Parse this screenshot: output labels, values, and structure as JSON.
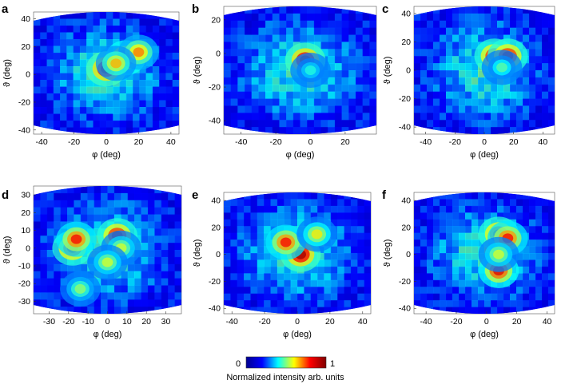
{
  "figure": {
    "colorbar": {
      "min_label": "0",
      "max_label": "1",
      "label": "Normalized intensity arb. units",
      "colormap": [
        "#00008f",
        "#0000ff",
        "#00ffff",
        "#ffff00",
        "#ff0000",
        "#800000"
      ]
    }
  },
  "chart_data": [
    {
      "panel": "a",
      "type": "heatmap",
      "xlabel": "φ (deg)",
      "ylabel": "ϑ (deg)",
      "xlim": [
        -45,
        45
      ],
      "ylim": [
        -43,
        45
      ],
      "xticks": [
        "-40",
        "-20",
        "0",
        "20",
        "40"
      ],
      "yticks": [
        "40",
        "20",
        "0",
        "-20",
        "-40"
      ],
      "hotspots": [
        {
          "x": 0,
          "y": 4,
          "intensity": 1.0
        },
        {
          "x": 12,
          "y": 12,
          "intensity": 0.9
        },
        {
          "x": 20,
          "y": 16,
          "intensity": 0.75
        },
        {
          "x": 6,
          "y": 8,
          "intensity": 0.7
        }
      ]
    },
    {
      "panel": "b",
      "type": "heatmap",
      "xlabel": "φ (deg)",
      "ylabel": "ϑ (deg)",
      "xlim": [
        -50,
        38
      ],
      "ylim": [
        -48,
        28
      ],
      "xticks": [
        "-40",
        "-20",
        "0",
        "20"
      ],
      "yticks": [
        "20",
        "0",
        "-20",
        "-40"
      ],
      "hotspots": [
        {
          "x": -3,
          "y": -4,
          "intensity": 1.0
        },
        {
          "x": 0,
          "y": -10,
          "intensity": 0.45
        }
      ]
    },
    {
      "panel": "c",
      "type": "heatmap",
      "xlabel": "φ (deg)",
      "ylabel": "ϑ (deg)",
      "xlim": [
        -48,
        48
      ],
      "ylim": [
        -45,
        45
      ],
      "xticks": [
        "-40",
        "-20",
        "0",
        "20",
        "40"
      ],
      "yticks": [
        "40",
        "20",
        "0",
        "-20",
        "-40"
      ],
      "hotspots": [
        {
          "x": 7,
          "y": 10,
          "intensity": 0.95
        },
        {
          "x": 16,
          "y": 10,
          "intensity": 0.95
        },
        {
          "x": 12,
          "y": 2,
          "intensity": 0.5
        }
      ]
    },
    {
      "panel": "d",
      "type": "heatmap",
      "xlabel": "φ (deg)",
      "ylabel": "ϑ (deg)",
      "xlim": [
        -38,
        38
      ],
      "ylim": [
        -37,
        35
      ],
      "xticks": [
        "-30",
        "-20",
        "-10",
        "0",
        "10",
        "20",
        "30"
      ],
      "yticks": [
        "30",
        "20",
        "10",
        "0",
        "-10",
        "-20",
        "-30"
      ],
      "hotspots": [
        {
          "x": -18,
          "y": 0,
          "intensity": 0.95
        },
        {
          "x": -16,
          "y": 5,
          "intensity": 0.85
        },
        {
          "x": 5,
          "y": 7,
          "intensity": 0.95
        },
        {
          "x": 7,
          "y": 0,
          "intensity": 0.6
        },
        {
          "x": 0,
          "y": -8,
          "intensity": 0.6
        },
        {
          "x": -14,
          "y": -23,
          "intensity": 0.55
        }
      ]
    },
    {
      "panel": "e",
      "type": "heatmap",
      "xlabel": "φ (deg)",
      "ylabel": "ϑ (deg)",
      "xlim": [
        -45,
        45
      ],
      "ylim": [
        -44,
        46
      ],
      "xticks": [
        "-40",
        "-20",
        "0",
        "20",
        "40"
      ],
      "yticks": [
        "40",
        "20",
        "0",
        "-20",
        "-40"
      ],
      "hotspots": [
        {
          "x": 2,
          "y": 0,
          "intensity": 1.0
        },
        {
          "x": -7,
          "y": 9,
          "intensity": 0.85
        },
        {
          "x": 12,
          "y": 15,
          "intensity": 0.65
        }
      ]
    },
    {
      "panel": "f",
      "type": "heatmap",
      "xlabel": "φ (deg)",
      "ylabel": "ϑ (deg)",
      "xlim": [
        -48,
        45
      ],
      "ylim": [
        -44,
        46
      ],
      "xticks": [
        "-40",
        "-20",
        "0",
        "20",
        "40"
      ],
      "yticks": [
        "40",
        "20",
        "0",
        "-20",
        "-40"
      ],
      "hotspots": [
        {
          "x": 8,
          "y": 15,
          "intensity": 0.95
        },
        {
          "x": 14,
          "y": 12,
          "intensity": 0.85
        },
        {
          "x": 8,
          "y": -12,
          "intensity": 0.9
        },
        {
          "x": 8,
          "y": 0,
          "intensity": 0.6
        }
      ]
    }
  ]
}
